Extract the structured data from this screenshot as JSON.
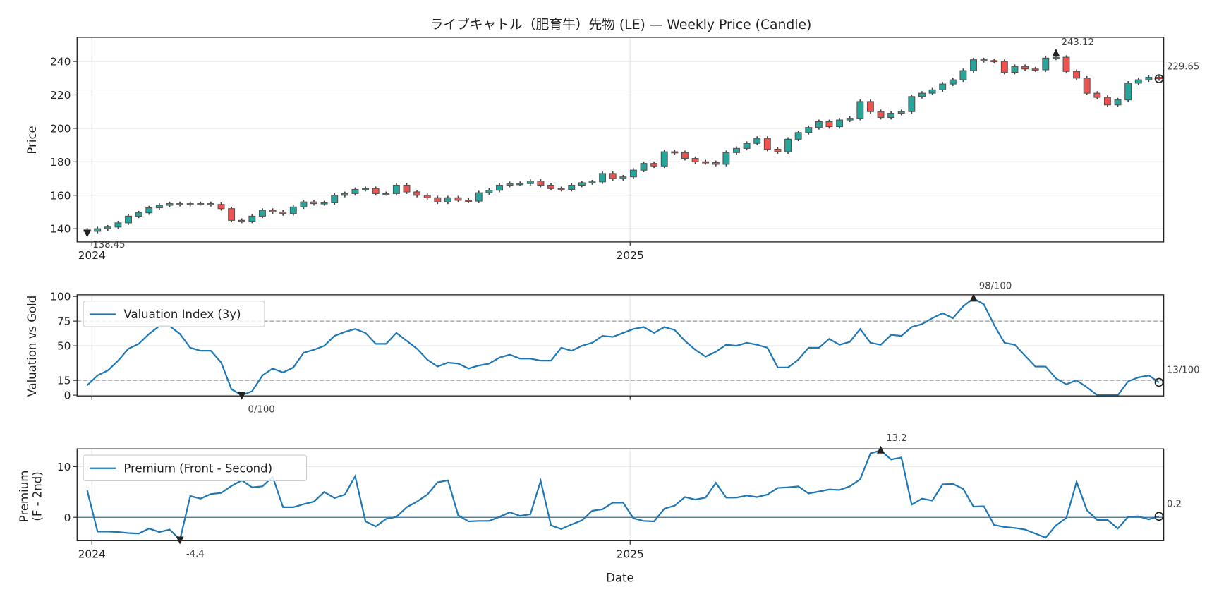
{
  "title": "ライブキャトル（肥育牛）先物 (LE) — Weekly Price (Candle)",
  "colors": {
    "up": "#26a69a",
    "down": "#ef5350",
    "line": "#1f77b4",
    "edge": "#444444"
  },
  "chart_data": [
    {
      "type": "candlestick",
      "title": "ライブキャトル（肥育牛）先物 (LE) — Weekly Price (Candle)",
      "ylabel": "Price",
      "ylim": [
        132.1,
        254.4
      ],
      "yticks": [
        "140",
        "160",
        "180",
        "200",
        "220",
        "240"
      ],
      "xticks": [
        "2024",
        "2025"
      ],
      "close": [
        138.45,
        140,
        141,
        143.5,
        147.5,
        149.5,
        152.5,
        154,
        155,
        154.5,
        155,
        155,
        154.5,
        152,
        145,
        144.5,
        147.5,
        151,
        150,
        149,
        153,
        156,
        155,
        155.5,
        160,
        161,
        163.5,
        164,
        161,
        161,
        166,
        162,
        160,
        158.5,
        156,
        158.5,
        157,
        156.5,
        161.5,
        163,
        166,
        167,
        167,
        168.5,
        166,
        164,
        163.5,
        166,
        167.5,
        168,
        173,
        170,
        171,
        175,
        179,
        177.5,
        186,
        185.5,
        182,
        180,
        179.5,
        178.5,
        185.5,
        188,
        191,
        194,
        187.5,
        186,
        193.5,
        197.5,
        200.5,
        204,
        201,
        205,
        206,
        216,
        210,
        206.5,
        209,
        210,
        219,
        221,
        223,
        226.5,
        229,
        234.5,
        241,
        240.5,
        240,
        233.5,
        237,
        235.5,
        235,
        242,
        242.5,
        234,
        230,
        221,
        218.5,
        214,
        217,
        227,
        229,
        230.5,
        229.65
      ],
      "annotations": {
        "max": "243.12",
        "min": "138.45",
        "last": "229.65"
      }
    },
    {
      "type": "line",
      "ylabel": "Valuation vs Gold",
      "ylim": [
        -0.8,
        101.6
      ],
      "yticks": [
        "0",
        "15",
        "50",
        "75",
        "100"
      ],
      "hlines": [
        75,
        15
      ],
      "legend": "Valuation Index (3y)",
      "legend_position": "upper-left",
      "values": [
        10,
        20,
        25,
        35,
        47,
        52,
        62,
        70,
        70,
        62,
        48,
        45,
        45,
        33,
        6,
        0,
        4,
        20,
        27,
        23,
        28,
        43,
        46,
        50,
        60,
        64,
        67,
        63,
        52,
        52,
        63,
        55,
        47,
        36,
        29,
        33,
        32,
        27,
        30,
        32,
        38,
        41,
        37,
        37,
        35,
        35,
        48,
        45,
        50,
        53,
        60,
        59,
        63,
        67,
        69,
        63,
        69,
        66,
        55,
        46,
        39,
        44,
        51,
        50,
        53,
        51,
        48,
        28,
        28,
        36,
        48,
        48,
        57,
        51,
        54,
        67,
        53,
        51,
        61,
        60,
        69,
        72,
        78,
        83,
        78,
        90,
        98,
        92,
        71,
        53,
        51,
        40,
        29,
        29,
        17,
        11,
        15,
        8,
        0,
        0,
        0,
        14,
        18,
        20,
        13
      ],
      "annotations": {
        "max": "98/100",
        "min": "0/100",
        "last": "13/100"
      }
    },
    {
      "type": "line",
      "ylabel": "Premium",
      "ylabel2": "(F - 2nd)",
      "xlabel": "Date",
      "ylim": [
        -4.6,
        13.5
      ],
      "yticks": [
        "0",
        "10"
      ],
      "xticks": [
        "2024",
        "2025"
      ],
      "hlines": [
        0
      ],
      "legend": "Premium (Front - Second)",
      "legend_position": "upper-left",
      "values": [
        5.3,
        -2.8,
        -2.8,
        -2.9,
        -3.1,
        -3.2,
        -2.2,
        -2.9,
        -2.4,
        -4.4,
        4.2,
        3.7,
        4.6,
        4.8,
        6.2,
        7.3,
        5.9,
        6.1,
        8,
        2,
        2,
        2.6,
        3.1,
        5,
        3.8,
        4.5,
        8.1,
        -0.8,
        -1.8,
        -0.3,
        0.1,
        2,
        3.1,
        4.5,
        6.9,
        7.3,
        0.4,
        -0.8,
        -0.7,
        -0.7,
        0.1,
        1,
        0.3,
        0.6,
        7.2,
        -1.6,
        -2.3,
        -1.4,
        -0.6,
        1.3,
        1.6,
        2.9,
        2.9,
        -0.2,
        -0.7,
        -0.8,
        1.7,
        2.3,
        4,
        3.5,
        3.9,
        6.8,
        3.9,
        3.9,
        4.3,
        4,
        4.5,
        5.8,
        5.9,
        6.1,
        4.7,
        5.1,
        5.5,
        5.4,
        6.1,
        7.5,
        12.6,
        13.2,
        11.4,
        11.8,
        2.5,
        3.7,
        3.3,
        6.5,
        6.6,
        5.6,
        2.1,
        2.2,
        -1.5,
        -1.9,
        -2.1,
        -2.4,
        -3.2,
        -4,
        -1.6,
        -0.1,
        7,
        1.4,
        -0.5,
        -0.5,
        -2.2,
        0.1,
        0.2,
        -0.4,
        0.2
      ],
      "annotations": {
        "max": "13.2",
        "min": "-4.4",
        "last": "0.2"
      }
    }
  ]
}
